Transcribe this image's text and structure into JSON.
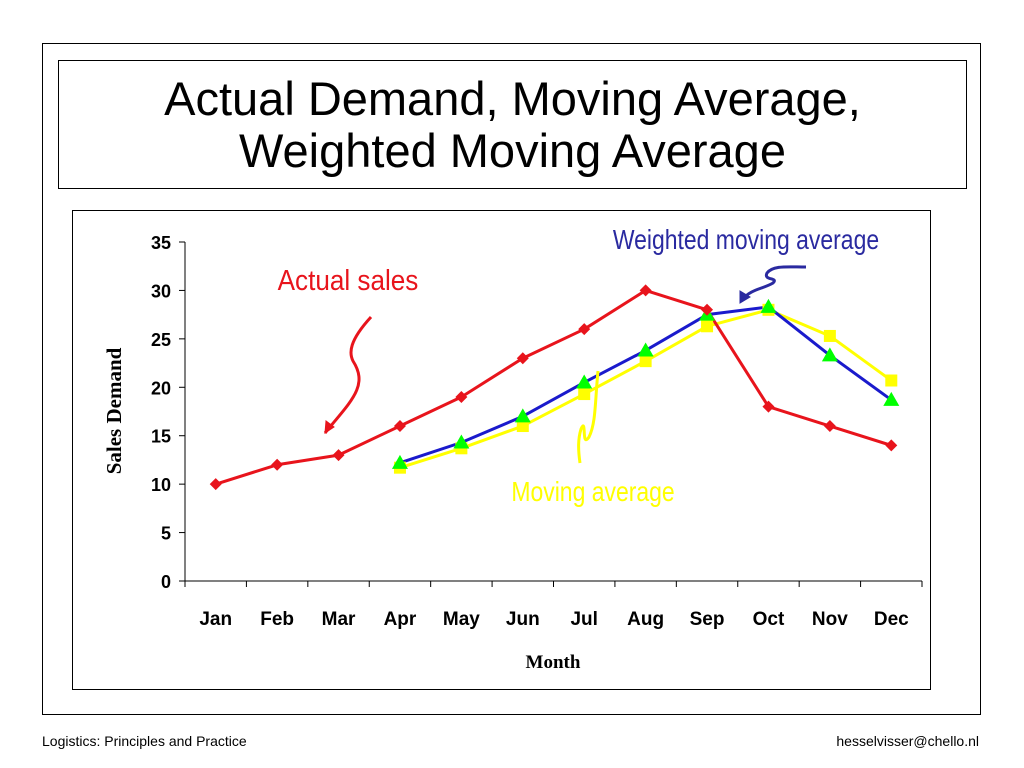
{
  "slide": {
    "title_line1": "Actual Demand, Moving Average,",
    "title_line2": "Weighted Moving Average",
    "footer_left": "Logistics: Principles and Practice",
    "footer_right": "hesselvisser@chello.nl"
  },
  "chart_data": {
    "type": "line",
    "title": "",
    "xlabel": "Month",
    "ylabel": "Sales Demand",
    "categories": [
      "Jan",
      "Feb",
      "Mar",
      "Apr",
      "May",
      "Jun",
      "Jul",
      "Aug",
      "Sep",
      "Oct",
      "Nov",
      "Dec"
    ],
    "ylim": [
      0,
      35
    ],
    "yticks": [
      0,
      5,
      10,
      15,
      20,
      25,
      30,
      35
    ],
    "grid": false,
    "legend": "none",
    "series": [
      {
        "name": "Actual sales",
        "color": "#e8141c",
        "marker": "diamond",
        "values": [
          10,
          12,
          13,
          16,
          19,
          23,
          26,
          30,
          28,
          18,
          16,
          14
        ]
      },
      {
        "name": "Moving average",
        "color": "#ffff00",
        "marker": "square",
        "values": [
          null,
          null,
          null,
          11.7,
          13.7,
          16.0,
          19.3,
          22.7,
          26.3,
          28.0,
          25.3,
          20.7
        ]
      },
      {
        "name": "Weighted moving average",
        "color": "#1a1acc",
        "marker": "triangle",
        "marker_color": "#00ff00",
        "values": [
          null,
          null,
          null,
          12.2,
          14.3,
          17.0,
          20.5,
          23.8,
          27.5,
          28.3,
          23.3,
          18.7
        ]
      }
    ],
    "annotations": [
      {
        "text": "Actual sales",
        "color": "#e8141c"
      },
      {
        "text": "Moving average",
        "color": "#ffff00"
      },
      {
        "text": "Weighted moving average",
        "color": "#2a2aa0"
      }
    ]
  }
}
